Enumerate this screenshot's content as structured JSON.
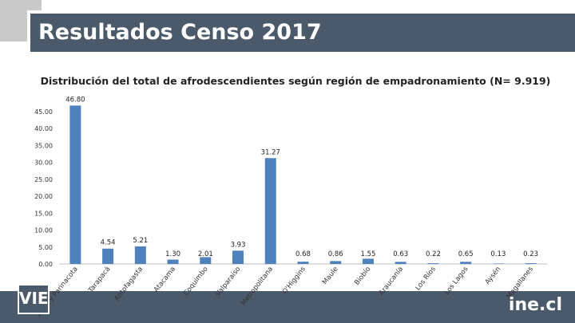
{
  "header": {
    "title": "Resultados Censo 2017"
  },
  "chart_data": {
    "type": "bar",
    "title": "Distribución del total de afrodescendientes según región de empadronamiento (N= 9.919)",
    "categories": [
      "Arica y Parinacota",
      "Tarapacá",
      "Antofagasta",
      "Atacama",
      "Coquimbo",
      "Valparaíso",
      "Metropolitana",
      "O'Higgins",
      "Maule",
      "Biobío",
      "Araucanía",
      "Los Ríos",
      "Los Lagos",
      "Aysén",
      "Magallanes"
    ],
    "values": [
      46.8,
      4.54,
      5.21,
      1.3,
      2.01,
      3.93,
      31.27,
      0.68,
      0.86,
      1.55,
      0.63,
      0.22,
      0.65,
      0.13,
      0.23
    ],
    "value_labels": [
      "46.80",
      "4.54",
      "5.21",
      "1.30",
      "2.01",
      "3.93",
      "31.27",
      "0.68",
      "0.86",
      "1.55",
      "0.63",
      "0.22",
      "0.65",
      "0.13",
      "0.23"
    ],
    "y_ticks": [
      "0.00",
      "5.00",
      "10.00",
      "15.00",
      "20.00",
      "25.00",
      "30.00",
      "35.00",
      "40.00",
      "45.00"
    ],
    "ylim": [
      0,
      45
    ],
    "grid": false,
    "bar_color": "#4f81bd"
  },
  "footer": {
    "left_logo": "VIE",
    "right_logo": "ine.cl"
  }
}
